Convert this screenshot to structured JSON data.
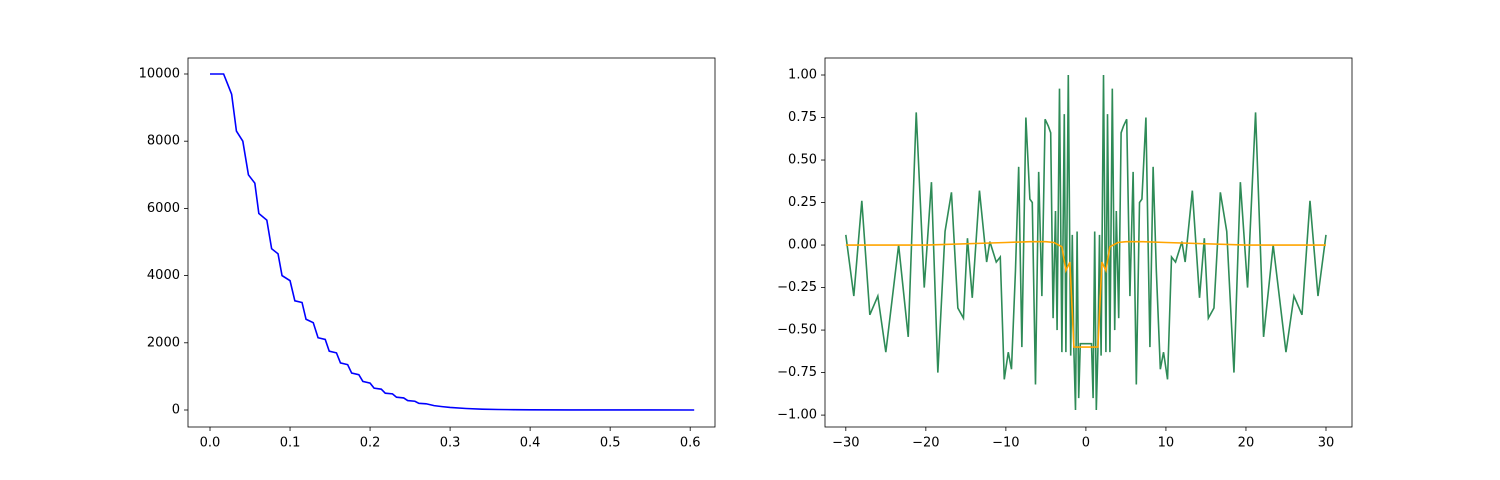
{
  "chart_data": [
    {
      "type": "line",
      "xlim": [
        -0.0275,
        0.631
      ],
      "ylim": [
        -506,
        10476
      ],
      "xticks": [
        {
          "value": 0,
          "label": "0.0"
        },
        {
          "value": 0.1,
          "label": "0.1"
        },
        {
          "value": 0.2,
          "label": "0.2"
        },
        {
          "value": 0.3,
          "label": "0.3"
        },
        {
          "value": 0.4,
          "label": "0.4"
        },
        {
          "value": 0.5,
          "label": "0.5"
        },
        {
          "value": 0.6,
          "label": "0.6"
        }
      ],
      "yticks": [
        0,
        2000,
        4000,
        6000,
        8000,
        10000
      ],
      "series": [
        {
          "color": "#0000ff",
          "x": [
            0,
            0.017,
            0.022,
            0.027,
            0.033,
            0.041,
            0.048,
            0.056,
            0.061,
            0.071,
            0.077,
            0.085,
            0.09,
            0.1,
            0.106,
            0.115,
            0.12,
            0.129,
            0.135,
            0.144,
            0.149,
            0.158,
            0.163,
            0.172,
            0.177,
            0.186,
            0.191,
            0.2,
            0.205,
            0.214,
            0.219,
            0.228,
            0.233,
            0.242,
            0.247,
            0.256,
            0.261,
            0.27,
            0.28,
            0.29,
            0.3,
            0.32,
            0.34,
            0.36,
            0.38,
            0.4,
            0.45,
            0.5,
            0.55,
            0.605
          ],
          "values": [
            10000,
            10000,
            9700,
            9400,
            8300,
            8000,
            7000,
            6750,
            5850,
            5650,
            4800,
            4650,
            4000,
            3850,
            3250,
            3200,
            2700,
            2600,
            2150,
            2100,
            1750,
            1700,
            1400,
            1350,
            1100,
            1050,
            850,
            800,
            650,
            620,
            500,
            480,
            380,
            360,
            280,
            260,
            200,
            185,
            130,
            100,
            75,
            45,
            25,
            15,
            9,
            5,
            2,
            1,
            0.5,
            0
          ]
        }
      ]
    },
    {
      "type": "line",
      "xlim": [
        -32.6,
        33.25
      ],
      "ylim": [
        -1.07,
        1.1
      ],
      "xticks": [
        {
          "value": -30,
          "label": "−30"
        },
        {
          "value": -20,
          "label": "−20"
        },
        {
          "value": -10,
          "label": "−10"
        },
        0,
        10,
        20,
        30
      ],
      "yticks": [
        {
          "value": -1,
          "label": "−1.00"
        },
        {
          "value": -0.75,
          "label": "−0.75"
        },
        {
          "value": -0.5,
          "label": "−0.50"
        },
        {
          "value": -0.25,
          "label": "−0.25"
        },
        {
          "value": 0,
          "label": "0.00"
        },
        {
          "value": 0.25,
          "label": "0.25"
        },
        {
          "value": 0.5,
          "label": "0.50"
        },
        {
          "value": 0.75,
          "label": "0.75"
        },
        {
          "value": 1,
          "label": "1.00"
        }
      ],
      "series": [
        {
          "color": "#2e8b57",
          "x": [
            -30,
            -29,
            -28,
            -27,
            -26,
            -25,
            -23.4,
            -22.2,
            -21.2,
            -20.2,
            -19.3,
            -18.5,
            -17.6,
            -16.8,
            -16,
            -15.3,
            -14.8,
            -14.2,
            -13.3,
            -12.4,
            -12,
            -11.2,
            -10.7,
            -10.2,
            -9.7,
            -9.3,
            -8.8,
            -8.4,
            -8,
            -7.5,
            -7,
            -6.7,
            -6.3,
            -5.9,
            -5.5,
            -5.1,
            -4.7,
            -4.4,
            -4.1,
            -3.8,
            -3.6,
            -3.3,
            -3.0,
            -2.7,
            -2.5,
            -2.2,
            -1.9,
            -1.7,
            -1.5,
            -1.3,
            -1.1,
            -0.9,
            -0.7,
            -0.3,
            0,
            0.3,
            0.7,
            0.9,
            1.1,
            1.3,
            1.5,
            1.7,
            1.9,
            2.2,
            2.5,
            2.7,
            3.0,
            3.3,
            3.6,
            3.8,
            4.1,
            4.4,
            4.7,
            5.1,
            5.5,
            5.9,
            6.3,
            6.7,
            7,
            7.5,
            8,
            8.4,
            8.8,
            9.3,
            9.7,
            10.2,
            10.7,
            11.2,
            12,
            12.4,
            13.3,
            14.2,
            14.8,
            15.3,
            16,
            16.8,
            17.6,
            18.5,
            19.3,
            20.2,
            21.2,
            22.2,
            23.4,
            25,
            26,
            27,
            28,
            29,
            30
          ],
          "values": [
            0.06,
            -0.3,
            0.26,
            -0.41,
            -0.3,
            -0.63,
            0.0,
            -0.54,
            0.78,
            -0.25,
            0.37,
            -0.75,
            0.08,
            0.31,
            -0.37,
            -0.43,
            0.04,
            -0.31,
            0.32,
            -0.1,
            0.02,
            -0.1,
            -0.07,
            -0.79,
            -0.63,
            -0.73,
            -0.15,
            0.46,
            -0.6,
            0.75,
            0.27,
            0.25,
            -0.82,
            0.43,
            -0.3,
            0.74,
            0.7,
            0.66,
            -0.43,
            0.2,
            -0.5,
            0.92,
            -0.63,
            0.77,
            -0.63,
            1.0,
            -0.65,
            0.06,
            -0.62,
            -0.97,
            0.08,
            -0.9,
            -0.58,
            -0.58,
            -0.58,
            -0.58,
            -0.58,
            -0.9,
            0.08,
            -0.97,
            -0.62,
            0.06,
            -0.65,
            1.0,
            -0.63,
            0.77,
            -0.63,
            0.92,
            -0.5,
            0.2,
            -0.43,
            0.66,
            0.7,
            0.74,
            -0.3,
            0.43,
            -0.82,
            0.25,
            0.27,
            0.75,
            -0.6,
            0.46,
            -0.15,
            -0.73,
            -0.63,
            -0.79,
            -0.07,
            -0.1,
            0.02,
            -0.1,
            0.32,
            -0.31,
            0.04,
            -0.43,
            -0.37,
            0.31,
            0.08,
            -0.75,
            0.37,
            -0.25,
            0.78,
            -0.54,
            0.0,
            -0.63,
            -0.3,
            -0.41,
            0.26,
            -0.3,
            0.06
          ]
        },
        {
          "color": "#ffa500",
          "x": [
            -30,
            -20,
            -10,
            -7,
            -5,
            -4,
            -3,
            -2.5,
            -2,
            -1.5,
            0,
            1.5,
            2,
            2.5,
            3,
            4,
            5,
            7,
            10,
            20,
            30
          ],
          "values": [
            0,
            0,
            0.015,
            0.02,
            0.02,
            0.015,
            -0.01,
            -0.15,
            -0.1,
            -0.6,
            -0.6,
            -0.6,
            -0.1,
            -0.15,
            -0.01,
            0.015,
            0.02,
            0.02,
            0.015,
            0,
            0
          ]
        }
      ]
    }
  ]
}
